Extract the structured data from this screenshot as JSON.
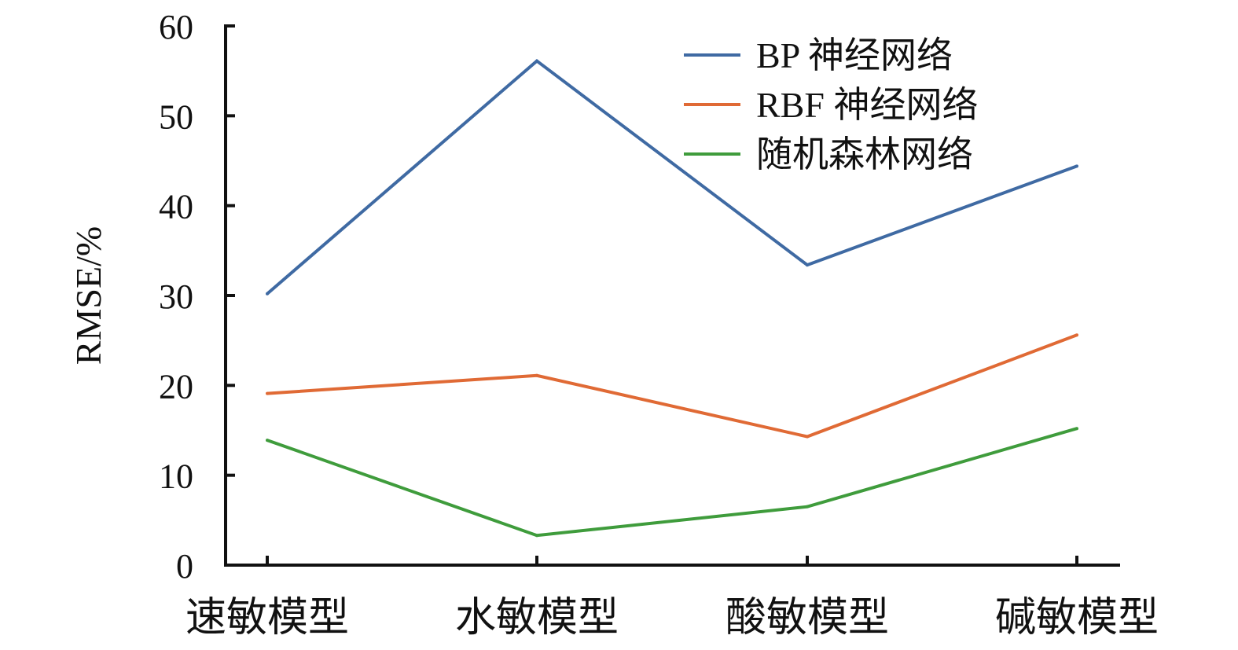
{
  "chart_data": {
    "type": "line",
    "categories": [
      "速敏模型",
      "水敏模型",
      "酸敏模型",
      "碱敏模型"
    ],
    "series": [
      {
        "name": "BP 神经网络",
        "color": "#3f6aa3",
        "values": [
          30.2,
          56.1,
          33.4,
          44.4
        ]
      },
      {
        "name": "RBF 神经网络",
        "color": "#e06a35",
        "values": [
          19.1,
          21.1,
          14.3,
          25.6
        ]
      },
      {
        "name": "随机森林网络",
        "color": "#3f9c3c",
        "values": [
          13.9,
          3.3,
          6.5,
          15.2
        ]
      }
    ],
    "title": "",
    "xlabel": "",
    "ylabel": "RMSE/%",
    "ylim": [
      0,
      60
    ],
    "yticks": [
      0,
      10,
      20,
      30,
      40,
      50,
      60
    ],
    "grid": false,
    "legend": "top-right"
  }
}
